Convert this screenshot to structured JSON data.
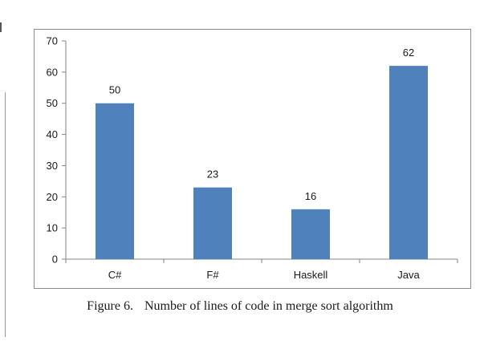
{
  "caption": {
    "label": "Figure 6.",
    "text": "Number of lines of code in merge sort algorithm"
  },
  "colors": {
    "bar": "#4f81bd",
    "axis": "#868686",
    "text": "#1a1a1a"
  },
  "chart_data": {
    "type": "bar",
    "categories": [
      "C#",
      "F#",
      "Haskell",
      "Java"
    ],
    "values": [
      50,
      23,
      16,
      62
    ],
    "data_labels": [
      "50",
      "23",
      "16",
      "62"
    ],
    "y_ticks": [
      "0",
      "10",
      "20",
      "30",
      "40",
      "50",
      "60",
      "70"
    ],
    "title": "",
    "xlabel": "",
    "ylabel": "",
    "ylim": [
      0,
      70
    ],
    "grid": false,
    "legend": "none"
  }
}
